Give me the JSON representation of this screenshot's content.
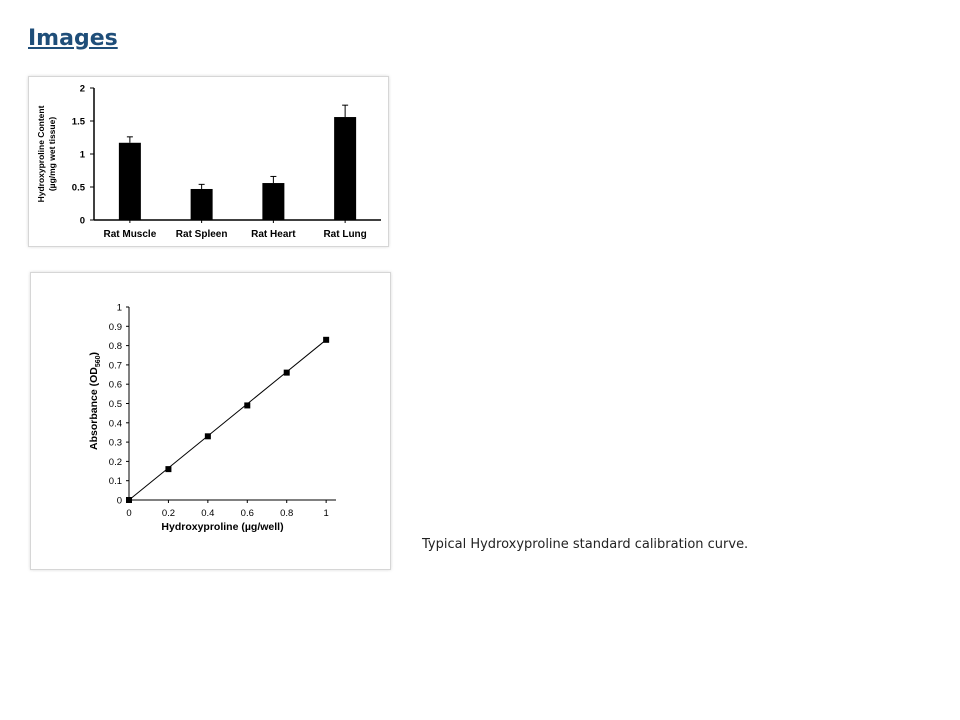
{
  "section": {
    "heading": "Images"
  },
  "caption": "Typical Hydroxyproline standard calibration curve.",
  "chart_data": [
    {
      "type": "bar",
      "ylabel_line1": "Hydroxyproline Content",
      "ylabel_line2": "(µg/mg wet tissue)",
      "categories": [
        "Rat Muscle",
        "Rat Spleen",
        "Rat Heart",
        "Rat Lung"
      ],
      "values": [
        1.17,
        0.47,
        0.56,
        1.56
      ],
      "errors": [
        0.09,
        0.07,
        0.1,
        0.18
      ],
      "ylim": [
        0,
        2
      ],
      "yticks": [
        "0",
        "0.5",
        "1",
        "1.5",
        "2"
      ],
      "bar_color": "#000000"
    },
    {
      "type": "scatter",
      "xlabel": "Hydroxyproline  (µg/well)",
      "ylabel_main": "Absorbance  (OD",
      "ylabel_sub": "560",
      "ylabel_end": ")",
      "x": [
        0,
        0.2,
        0.4,
        0.6,
        0.8,
        1.0
      ],
      "y": [
        0,
        0.16,
        0.33,
        0.49,
        0.66,
        0.83
      ],
      "xlim": [
        0,
        1.05
      ],
      "ylim": [
        0,
        1
      ],
      "xticks": [
        "0",
        "0.2",
        "0.4",
        "0.6",
        "0.8",
        "1"
      ],
      "yticks": [
        "0",
        "0.1",
        "0.2",
        "0.3",
        "0.4",
        "0.5",
        "0.6",
        "0.7",
        "0.8",
        "0.9",
        "1"
      ],
      "fit_line": true,
      "marker_color": "#000000"
    }
  ]
}
